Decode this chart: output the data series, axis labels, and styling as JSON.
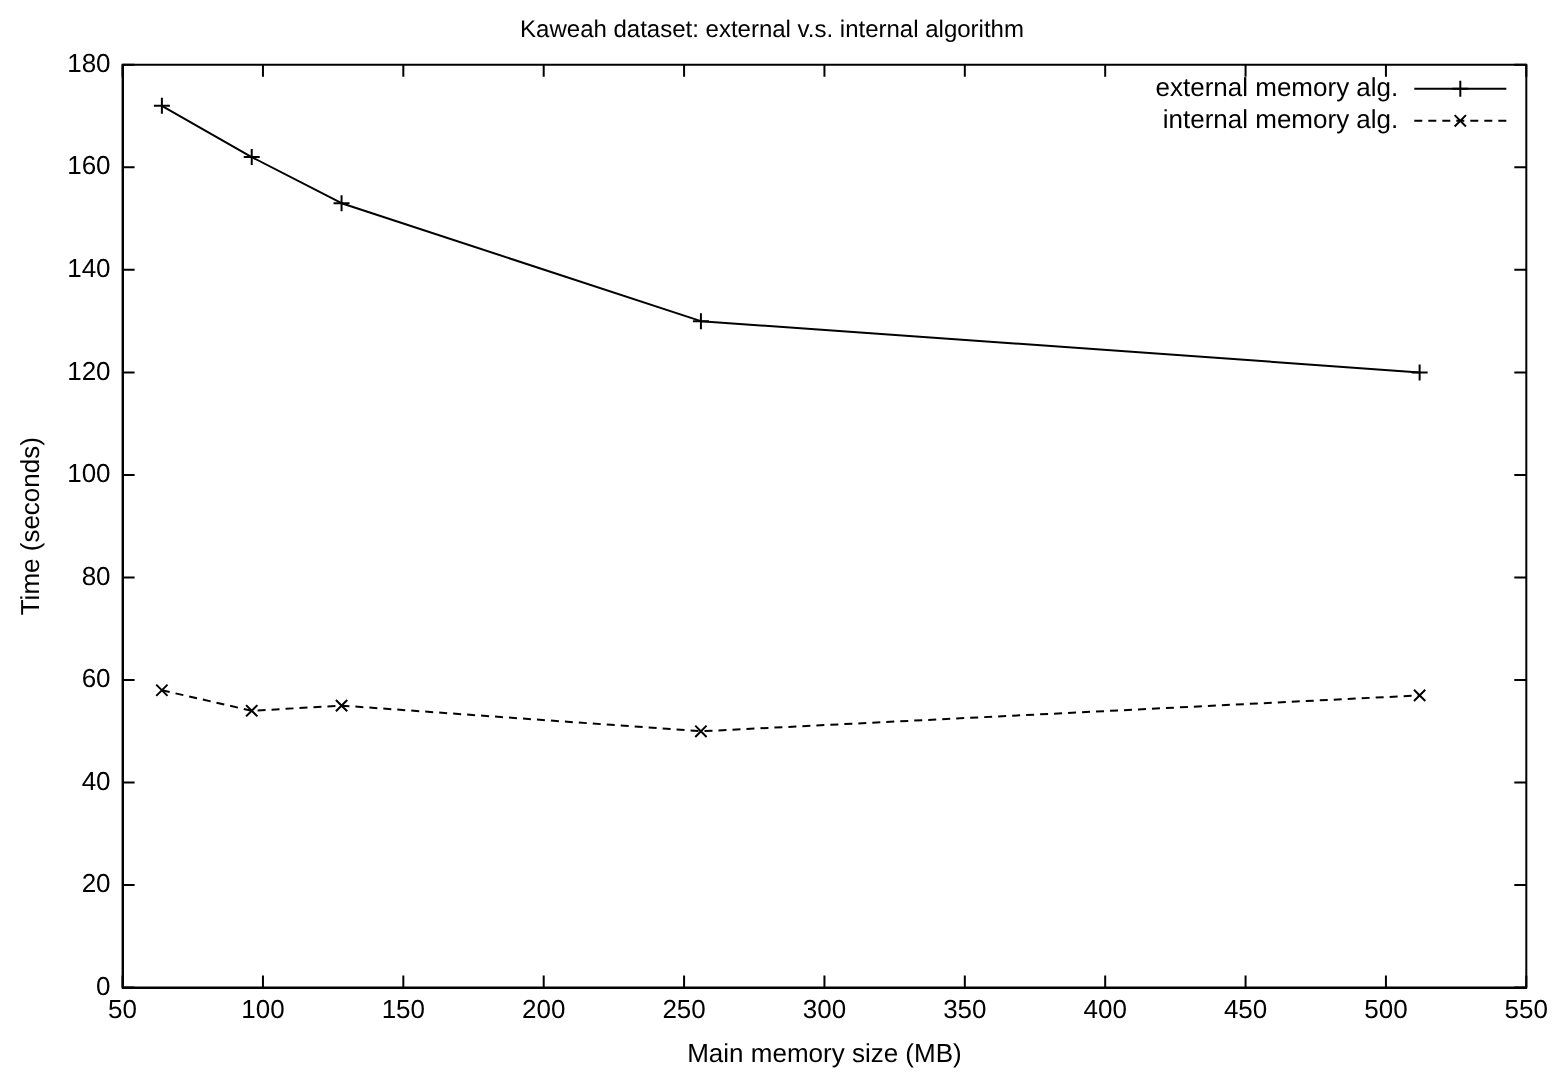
{
  "chart_data": {
    "type": "line",
    "title": "Kaweah dataset: external v.s. internal algorithm",
    "xlabel": "Main memory size (MB)",
    "ylabel": "Time (seconds)",
    "x": [
      64,
      96,
      128,
      256,
      512
    ],
    "series": [
      {
        "name": "external memory alg.",
        "color": "#000000",
        "values": [
          172,
          162,
          153,
          130,
          120
        ],
        "marker": "cross",
        "line_style": "solid"
      },
      {
        "name": "internal memory alg.",
        "color": "#000000",
        "values": [
          58,
          54,
          55,
          50,
          57
        ],
        "marker": "x",
        "line_style": "dashed"
      }
    ],
    "xlim": [
      50,
      550
    ],
    "xticks": [
      50,
      100,
      150,
      200,
      250,
      300,
      350,
      400,
      450,
      500,
      550
    ],
    "ylim": [
      0,
      180
    ],
    "yticks": [
      0,
      20,
      40,
      60,
      80,
      100,
      120,
      140,
      160,
      180
    ],
    "grid": false,
    "legend": "top right"
  }
}
